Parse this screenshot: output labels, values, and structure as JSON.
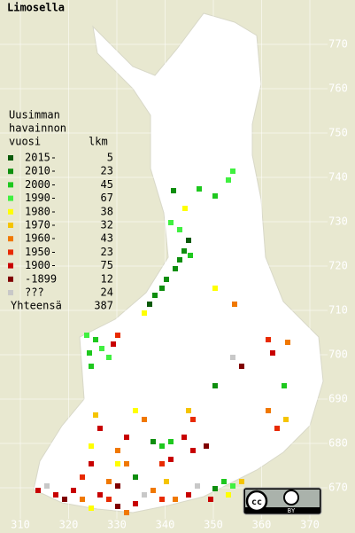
{
  "title": "Limosella",
  "legend": {
    "heading": [
      "Uusimman",
      "havainnon",
      "vuosi"
    ],
    "count_heading": "lkm",
    "entries": [
      {
        "label": "2015-",
        "count": 5,
        "color": "#0a5a0a"
      },
      {
        "label": "2010-",
        "count": 23,
        "color": "#0e8e0e"
      },
      {
        "label": "2000-",
        "count": 45,
        "color": "#1ec81e"
      },
      {
        "label": "1990-",
        "count": 67,
        "color": "#40f040"
      },
      {
        "label": "1980-",
        "count": 38,
        "color": "#ffff00"
      },
      {
        "label": "1970-",
        "count": 32,
        "color": "#f5c400"
      },
      {
        "label": "1960-",
        "count": 43,
        "color": "#f07800"
      },
      {
        "label": "1950-",
        "count": 23,
        "color": "#e82a00"
      },
      {
        "label": "1900-",
        "count": 75,
        "color": "#c80000"
      },
      {
        "label": "-1899",
        "count": 12,
        "color": "#800000"
      },
      {
        "label": "???",
        "count": 24,
        "color": "#c8c8c8"
      }
    ],
    "total_label": "Yhteensä",
    "total": 387
  },
  "x_labels": [
    310,
    320,
    330,
    340,
    350,
    360,
    370
  ],
  "y_labels": [
    670,
    680,
    690,
    700,
    710,
    720,
    730,
    740,
    750,
    760,
    770
  ],
  "license": {
    "cc": "cc",
    "by": "BY"
  }
}
